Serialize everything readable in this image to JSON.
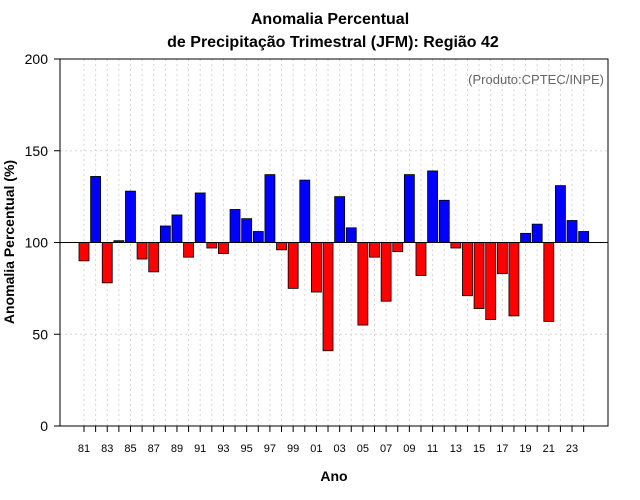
{
  "chart_data": {
    "type": "bar",
    "title_line1": "Anomalia Percentual",
    "title_line2": "de Precipitação Trimestral (JFM): Região 42",
    "xlabel": "Ano",
    "ylabel": "Anomalia Percentual (%)",
    "annotation": "(Produto:CPTEC/INPE)",
    "ylim": [
      0,
      200
    ],
    "yticks": [
      0,
      50,
      100,
      150,
      200
    ],
    "baseline": 100,
    "grid": true,
    "colors": {
      "above": "#0000ff",
      "below": "#ff0000"
    },
    "categories": [
      "81",
      "82",
      "83",
      "84",
      "85",
      "86",
      "87",
      "88",
      "89",
      "90",
      "91",
      "92",
      "93",
      "94",
      "95",
      "96",
      "97",
      "98",
      "99",
      "00",
      "01",
      "02",
      "03",
      "04",
      "05",
      "06",
      "07",
      "08",
      "09",
      "10",
      "11",
      "12",
      "13",
      "14",
      "15",
      "16",
      "17",
      "18",
      "19",
      "20",
      "21",
      "22",
      "23",
      "24"
    ],
    "x_tick_labels": [
      "81",
      "83",
      "85",
      "87",
      "89",
      "91",
      "93",
      "95",
      "97",
      "99",
      "01",
      "03",
      "05",
      "07",
      "09",
      "11",
      "13",
      "15",
      "17",
      "19",
      "21",
      "23"
    ],
    "values": [
      90,
      136,
      78,
      101,
      128,
      91,
      84,
      109,
      115,
      92,
      127,
      97,
      94,
      118,
      113,
      106,
      137,
      96,
      75,
      134,
      73,
      41,
      125,
      108,
      55,
      92,
      68,
      95,
      137,
      82,
      139,
      123,
      97,
      71,
      64,
      58,
      83,
      60,
      105,
      110,
      57,
      131,
      112,
      106
    ]
  }
}
